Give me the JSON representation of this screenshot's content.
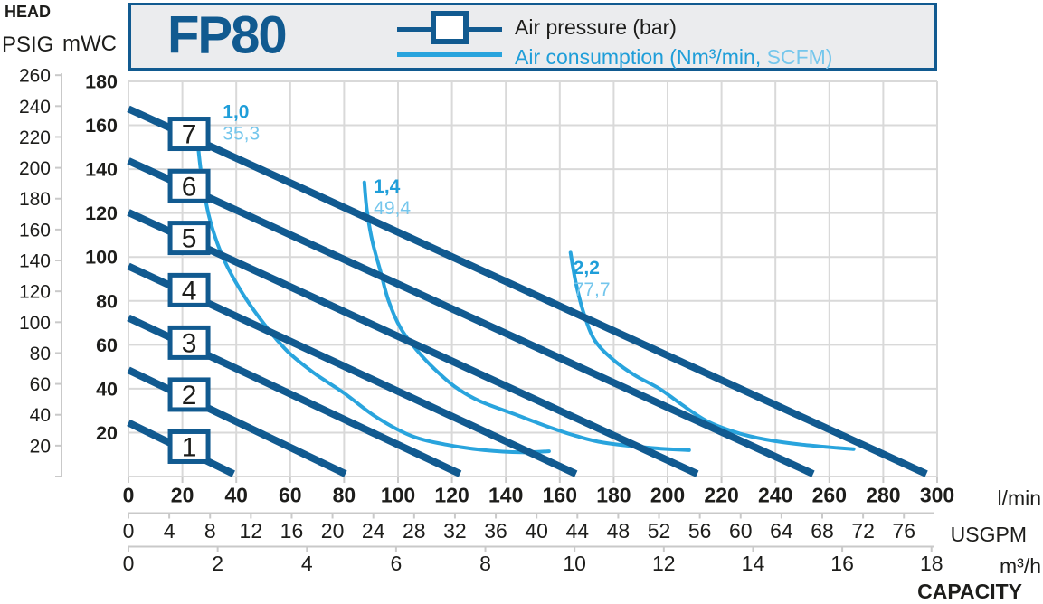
{
  "legend": {
    "model": "FP80",
    "air_pressure_label": "Air pressure (bar)",
    "air_consumption_label_main": "Air consumption (Nm³/min,",
    "air_consumption_label_secondary": " SCFM)"
  },
  "colors": {
    "dark_blue": "#115a90",
    "light_blue": "#29a4dd",
    "label_blue": "#1f9ed9",
    "label_blue_light": "#74c6ec",
    "grid": "#d9d9d9",
    "axis_gray": "#c9c9c9",
    "text_black": "#1d1d1b",
    "legend_bg": "#ebecee",
    "box_fill": "#ffffff"
  },
  "chart_data": {
    "type": "line",
    "title": "FP80",
    "xlabel": "CAPACITY",
    "ylabel": "HEAD",
    "grid": true,
    "x_axes": [
      {
        "name": "capacity-l-min",
        "unit": "l/min",
        "bold_ticks": true,
        "ticks": [
          0,
          20,
          40,
          60,
          80,
          100,
          120,
          140,
          160,
          180,
          200,
          220,
          240,
          260,
          280,
          300
        ]
      },
      {
        "name": "capacity-usgpm",
        "unit": "USGPM",
        "bold_ticks": false,
        "ticks": [
          0,
          4,
          8,
          12,
          16,
          20,
          24,
          28,
          32,
          36,
          40,
          44,
          48,
          52,
          56,
          60,
          64,
          68,
          72,
          76
        ]
      },
      {
        "name": "capacity-m3-h",
        "unit": "m³/h",
        "bold_ticks": false,
        "ticks": [
          0,
          2,
          4,
          6,
          8,
          10,
          12,
          14,
          16,
          18
        ]
      }
    ],
    "y_axes": [
      {
        "name": "head-mwc",
        "unit": "mWC",
        "bold_ticks": true,
        "ticks": [
          20,
          40,
          60,
          80,
          100,
          120,
          140,
          160,
          180
        ]
      },
      {
        "name": "head-psig",
        "unit": "PSIG",
        "bold_ticks": false,
        "ticks": [
          20,
          40,
          60,
          80,
          100,
          120,
          140,
          160,
          180,
          200,
          220,
          240,
          260
        ]
      }
    ],
    "xlim_lmin": [
      0,
      300
    ],
    "ylim_mwc": [
      0,
      180
    ],
    "pressure_box_flow_lmin": 22.5,
    "pressure_series": [
      {
        "bar": 1,
        "start_head_mwc": 24.5,
        "end_flow_lmin": 39,
        "box_head_mwc": 13.6
      },
      {
        "bar": 2,
        "start_head_mwc": 48.5,
        "end_flow_lmin": 80.5,
        "box_head_mwc": 37.3
      },
      {
        "bar": 3,
        "start_head_mwc": 72.3,
        "end_flow_lmin": 123,
        "box_head_mwc": 61.0
      },
      {
        "bar": 4,
        "start_head_mwc": 95.8,
        "end_flow_lmin": 166,
        "box_head_mwc": 84.9
      },
      {
        "bar": 5,
        "start_head_mwc": 120.3,
        "end_flow_lmin": 211,
        "box_head_mwc": 108.7
      },
      {
        "bar": 6,
        "start_head_mwc": 143.8,
        "end_flow_lmin": 254,
        "box_head_mwc": 132.3
      },
      {
        "bar": 7,
        "start_head_mwc": 167.5,
        "end_flow_lmin": 296,
        "box_head_mwc": 156.1
      }
    ],
    "consumption_curves": [
      {
        "nm3_min": "1,0",
        "scfm": "35,3",
        "label_at_lmin_mwc": [
          35,
          167
        ],
        "points": [
          [
            25.5,
            155
          ],
          [
            27,
            138
          ],
          [
            30,
            118
          ],
          [
            35,
            100
          ],
          [
            42,
            84
          ],
          [
            50,
            70
          ],
          [
            59,
            57
          ],
          [
            69,
            47
          ],
          [
            80,
            38
          ],
          [
            92,
            27
          ],
          [
            105,
            18.5
          ],
          [
            118,
            14.5
          ],
          [
            132,
            12
          ],
          [
            146,
            11
          ],
          [
            156,
            11.5
          ]
        ]
      },
      {
        "nm3_min": "1,4",
        "scfm": "49,4",
        "label_at_lmin_mwc": [
          91,
          133
        ],
        "points": [
          [
            87.5,
            134
          ],
          [
            88.5,
            121
          ],
          [
            90.5,
            107
          ],
          [
            93.5,
            93.5
          ],
          [
            96.5,
            80
          ],
          [
            101,
            67.5
          ],
          [
            107,
            57.5
          ],
          [
            113.5,
            49
          ],
          [
            121,
            41
          ],
          [
            130,
            34.5
          ],
          [
            143,
            28.5
          ],
          [
            156,
            22.5
          ],
          [
            166,
            18.5
          ],
          [
            176,
            15.5
          ],
          [
            194,
            13
          ],
          [
            208,
            12
          ]
        ]
      },
      {
        "nm3_min": "2,2",
        "scfm": "77,7",
        "label_at_lmin_mwc": [
          165,
          96
        ],
        "points": [
          [
            164,
            102
          ],
          [
            166,
            88
          ],
          [
            169,
            74
          ],
          [
            173,
            62
          ],
          [
            180,
            53
          ],
          [
            188,
            46
          ],
          [
            197,
            40
          ],
          [
            205,
            33
          ],
          [
            215,
            25
          ],
          [
            227,
            19.5
          ],
          [
            238,
            16.5
          ],
          [
            250,
            14.5
          ],
          [
            263,
            13
          ],
          [
            269,
            12.5
          ]
        ]
      }
    ]
  }
}
